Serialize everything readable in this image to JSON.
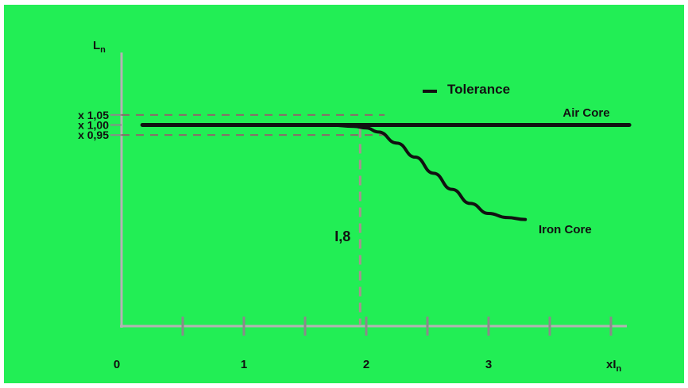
{
  "chart_data": {
    "type": "line",
    "xlim": [
      0,
      4
    ],
    "ylim": [
      0,
      1.36
    ],
    "x_ticks": [
      {
        "x": 0.5
      },
      {
        "x": 1,
        "label": "1"
      },
      {
        "x": 1.5
      },
      {
        "x": 2,
        "label": "2"
      },
      {
        "x": 2.5
      },
      {
        "x": 3,
        "label": "3"
      },
      {
        "x": 3.5
      },
      {
        "x": 4
      }
    ],
    "origin_label": "0",
    "xlabel": {
      "main": "xI",
      "sub": "n"
    },
    "ylabel": {
      "main": "L",
      "sub": "n"
    },
    "y_ticks": [
      {
        "value": 1.05,
        "label": "x 1,05"
      },
      {
        "value": 1.0,
        "label": "x 1,00"
      },
      {
        "value": 0.95,
        "label": "x 0,95"
      }
    ],
    "series": [
      {
        "name": "Air Core",
        "x": [
          0.17,
          4.15
        ],
        "y": [
          1.0,
          1.0
        ],
        "color": "#111111"
      },
      {
        "name": "Iron Core",
        "x": [
          1.7,
          1.9,
          2.0,
          2.1,
          2.25,
          2.4,
          2.55,
          2.7,
          2.85,
          3.0,
          3.15,
          3.3
        ],
        "y": [
          1.0,
          0.993,
          0.985,
          0.965,
          0.91,
          0.84,
          0.76,
          0.68,
          0.61,
          0.56,
          0.54,
          0.53
        ],
        "color": "#111111"
      }
    ],
    "tolerance_label": "Tolerance",
    "tolerance_band": [
      0.95,
      1.05
    ],
    "tolerance_x_end": 2.15,
    "marker": {
      "x": 1.95,
      "label": "I,8"
    },
    "grid": false
  }
}
